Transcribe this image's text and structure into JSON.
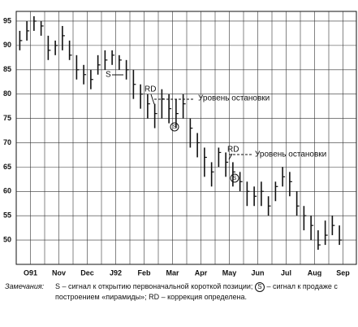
{
  "chart_data": {
    "type": "ohlc",
    "months": [
      "O91",
      "Nov",
      "Dec",
      "J92",
      "Feb",
      "Mar",
      "Apr",
      "May",
      "Jun",
      "Jul",
      "Aug",
      "Sep"
    ],
    "high": [
      93,
      95,
      96,
      95,
      92,
      91,
      94,
      91,
      88,
      86,
      85,
      88,
      89,
      89,
      88,
      87,
      85,
      82,
      80,
      78,
      81,
      80,
      79,
      80,
      75,
      72,
      69,
      66,
      69,
      68,
      66,
      64,
      62,
      61,
      62,
      59,
      62,
      65,
      64,
      60,
      57,
      55,
      52,
      54,
      55,
      53
    ],
    "low": [
      89,
      91,
      93,
      92,
      87,
      88,
      89,
      87,
      83,
      82,
      81,
      84,
      85,
      86,
      85,
      83,
      79,
      77,
      75,
      73,
      75,
      74,
      73,
      75,
      69,
      67,
      63,
      61,
      65,
      63,
      61,
      60,
      57,
      57,
      57,
      55,
      58,
      61,
      59,
      55,
      52,
      50,
      48,
      49,
      51,
      49
    ],
    "close": [
      91,
      93,
      95,
      94,
      89,
      90,
      92,
      88,
      85,
      84,
      83,
      86,
      87,
      88,
      87,
      85,
      82,
      80,
      78,
      76,
      79,
      77,
      76,
      78,
      73,
      70,
      67,
      64,
      68,
      66,
      64,
      62,
      60,
      59,
      60,
      57,
      61,
      63,
      62,
      57,
      55,
      53,
      49,
      51,
      53,
      50
    ],
    "bars_per_month": 4,
    "ylim": [
      45,
      97
    ],
    "yticks": [
      50,
      55,
      60,
      65,
      70,
      75,
      80,
      85,
      90,
      95
    ],
    "grid": true,
    "color": "#111111",
    "annotations": [
      "S",
      "RD",
      "Уровень остановки",
      "S",
      "RD",
      "Уровень остановки",
      "S"
    ],
    "notes_label": "Замечания:",
    "notes_part1": "S – сигнал к открытию первоначальной короткой позиции;",
    "notes_circled": "S",
    "notes_part2": "– сигнал к продаже с построением «пирамиды»; RD – коррекция определена."
  }
}
